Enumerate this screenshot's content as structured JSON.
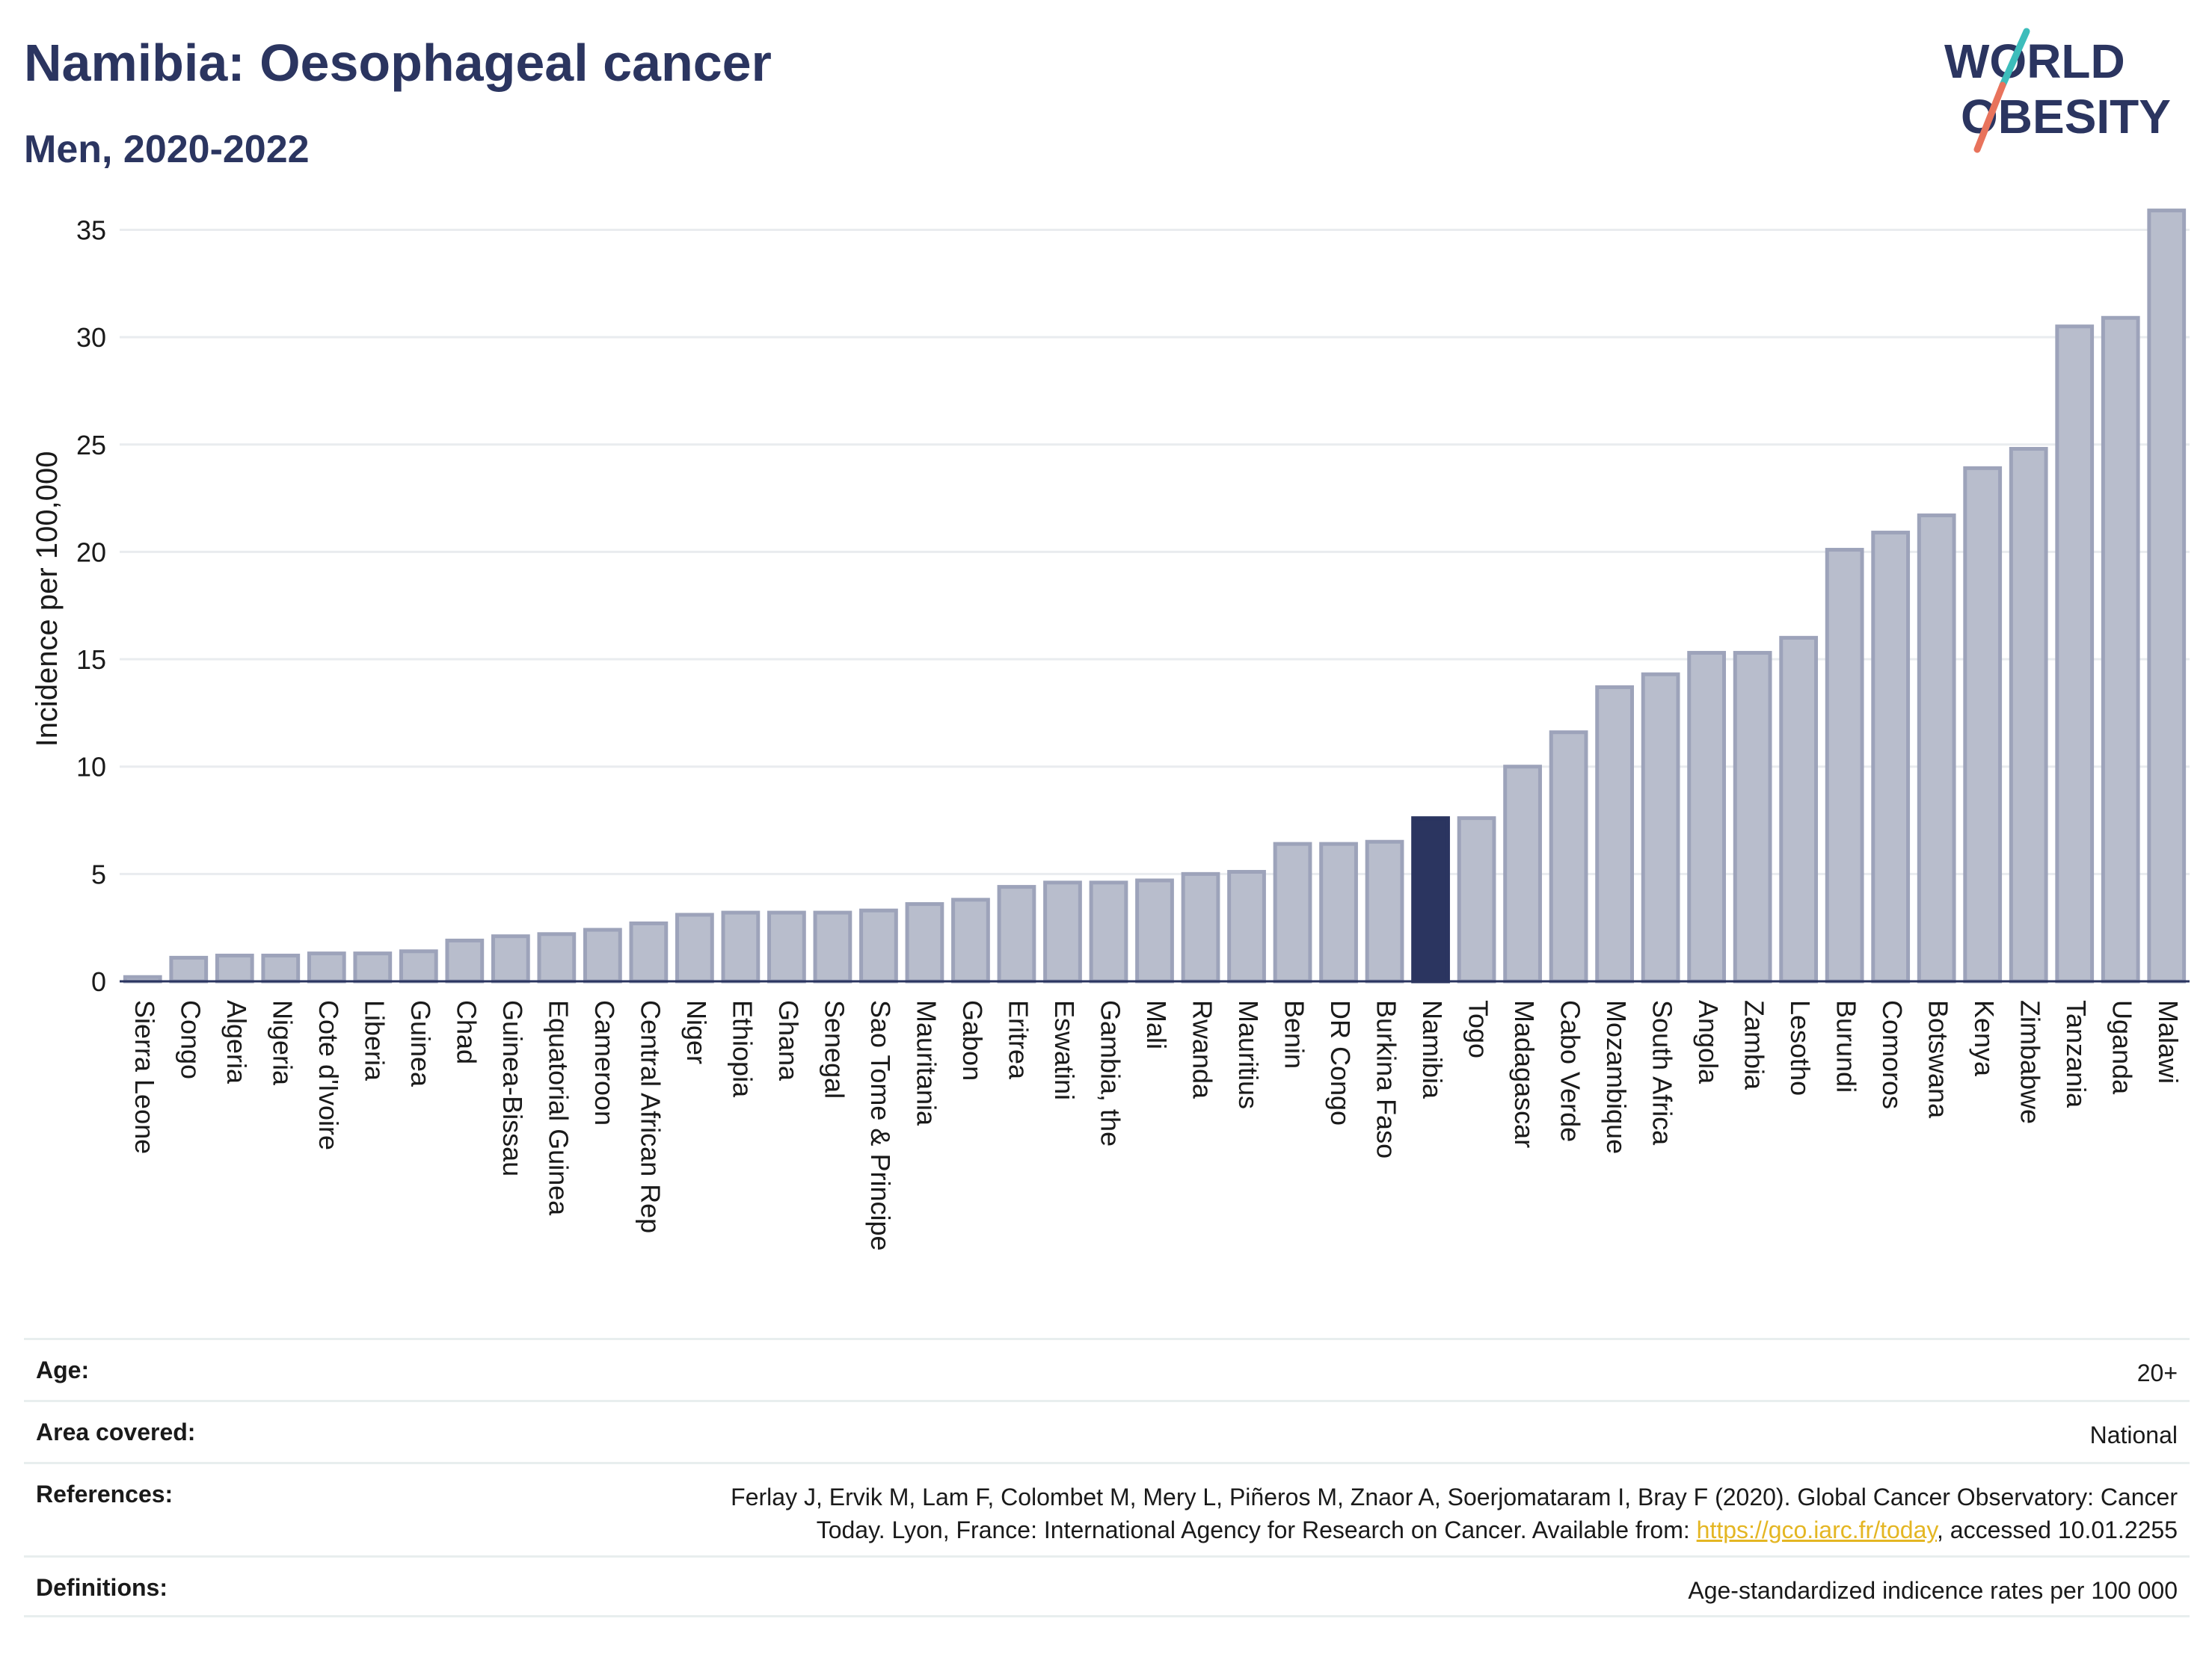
{
  "header": {
    "title": "Namibia: Oesophageal cancer",
    "subtitle": "Men, 2020-2022"
  },
  "logo": {
    "line1": "WORLD",
    "line2": "OBESITY",
    "slash_color_top": "#3dbdbb",
    "slash_color_bottom": "#e8735c"
  },
  "chart_data": {
    "type": "bar",
    "ylabel": "Incidence per 100,000",
    "xlabel": "",
    "ylim": [
      0,
      37
    ],
    "yticks": [
      0,
      5,
      10,
      15,
      20,
      25,
      30,
      35
    ],
    "highlight": "Namibia",
    "colors": {
      "bar": "#b8bdcc",
      "bar_stroke": "#9da3ba",
      "highlight": "#2b3560",
      "grid": "#e9ecef"
    },
    "categories": [
      "Sierra Leone",
      "Congo",
      "Algeria",
      "Nigeria",
      "Cote d'Ivoire",
      "Liberia",
      "Guinea",
      "Chad",
      "Guinea-Bissau",
      "Equatorial Guinea",
      "Cameroon",
      "Central African Rep",
      "Niger",
      "Ethiopia",
      "Ghana",
      "Senegal",
      "Sao Tome & Principe",
      "Mauritania",
      "Gabon",
      "Eritrea",
      "Eswatini",
      "Gambia, the",
      "Mali",
      "Rwanda",
      "Mauritius",
      "Benin",
      "DR Congo",
      "Burkina Faso",
      "Namibia",
      "Togo",
      "Madagascar",
      "Cabo Verde",
      "Mozambique",
      "South Africa",
      "Angola",
      "Zambia",
      "Lesotho",
      "Burundi",
      "Comoros",
      "Botswana",
      "Kenya",
      "Zimbabwe",
      "Tanzania",
      "Uganda",
      "Malawi"
    ],
    "values": [
      0.2,
      1.1,
      1.2,
      1.2,
      1.3,
      1.3,
      1.4,
      1.9,
      2.1,
      2.2,
      2.4,
      2.7,
      3.1,
      3.2,
      3.2,
      3.2,
      3.3,
      3.6,
      3.8,
      4.4,
      4.6,
      4.6,
      4.7,
      5.0,
      5.1,
      6.4,
      6.4,
      6.5,
      7.6,
      7.6,
      10.0,
      11.6,
      13.7,
      14.3,
      15.3,
      15.3,
      16.0,
      20.1,
      20.9,
      21.7,
      23.9,
      24.8,
      30.5,
      30.9,
      35.9
    ]
  },
  "details": [
    {
      "label": "Age:",
      "value": "20+"
    },
    {
      "label": "Area covered:",
      "value": "National"
    },
    {
      "label": "References:",
      "value_line1": "Ferlay J, Ervik M, Lam F, Colombet M, Mery L, Piñeros M, Znaor A, Soerjomataram I, Bray F (2020). Global Cancer Observatory: Cancer",
      "value_line2_pre": "Today. Lyon, France: International Agency for Research on Cancer. Available from: ",
      "link": "https://gco.iarc.fr/today",
      "value_line2_post": ", accessed 10.01.2255"
    },
    {
      "label": "Definitions:",
      "value": "Age-standardized indicence rates per 100 000"
    }
  ]
}
